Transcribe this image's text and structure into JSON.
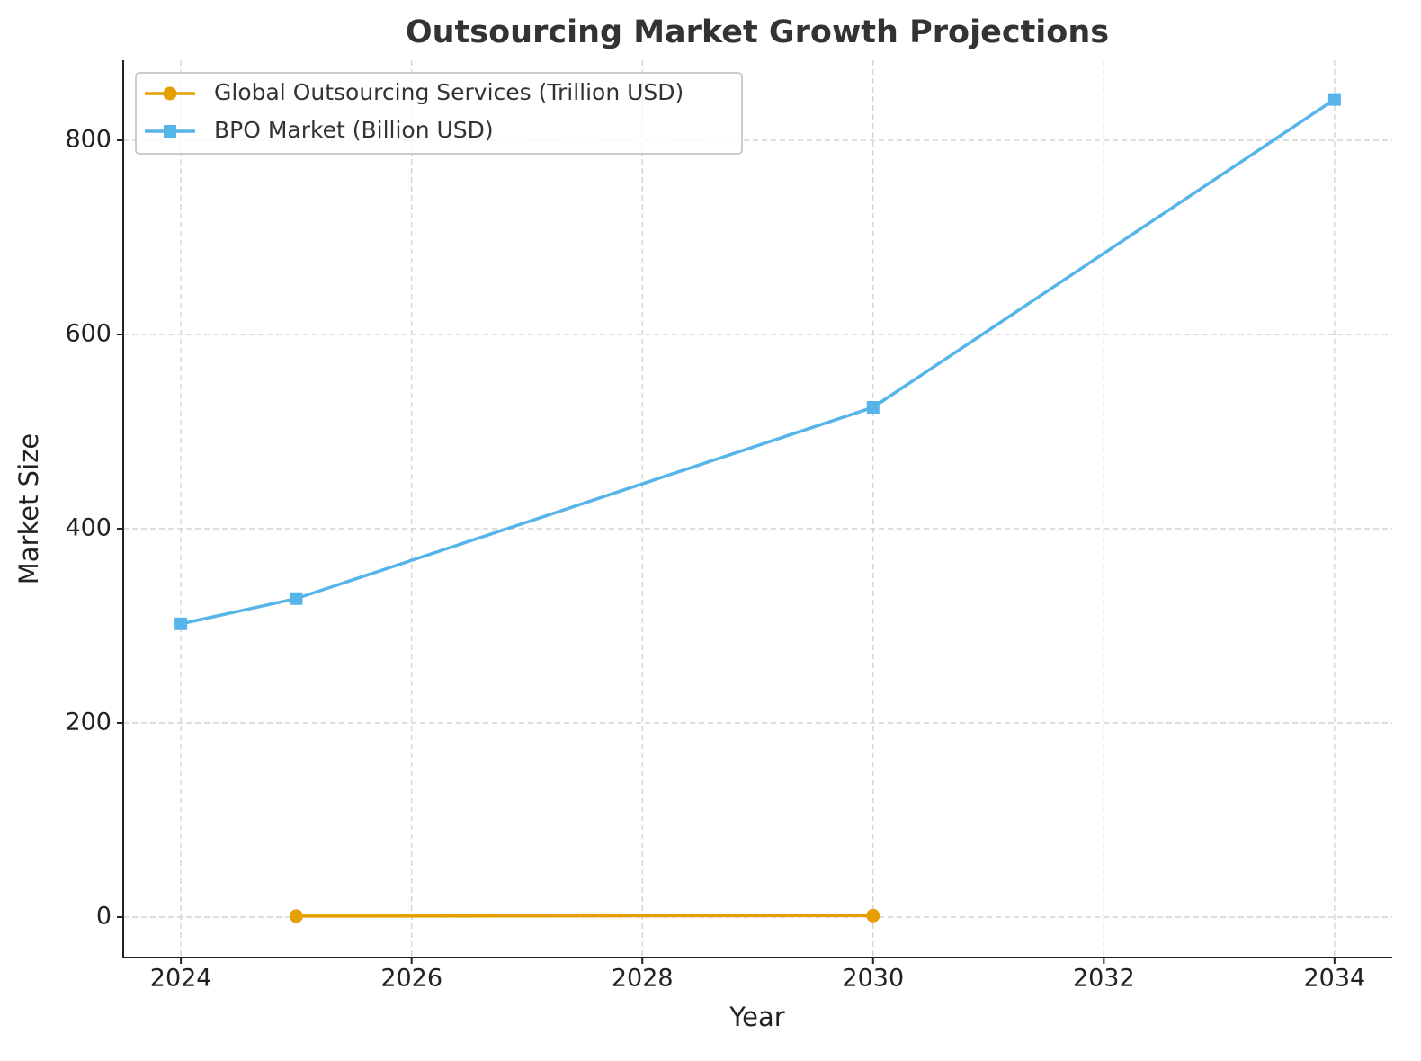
{
  "chart_data": {
    "type": "line",
    "title": "Outsourcing Market Growth Projections",
    "x_label": "Year",
    "y_label": "Market Size",
    "series": [
      {
        "name": "Global Outsourcing Services (Trillion USD)",
        "color": "#e69f00",
        "marker": "circle",
        "x": [
          2025,
          2030
        ],
        "values": [
          1.0,
          1.5
        ]
      },
      {
        "name": "BPO Market (Billion USD)",
        "color": "#56b4e9",
        "marker": "square",
        "x": [
          2024,
          2025,
          2030,
          2034
        ],
        "values": [
          302,
          328,
          525,
          842
        ]
      }
    ],
    "xlim": [
      2023.5,
      2034.5
    ],
    "xticks": [
      2024,
      2026,
      2028,
      2030,
      2032,
      2034
    ],
    "ylim": [
      -41.7,
      882.4
    ],
    "yticks": [
      0,
      200,
      400,
      600,
      800
    ],
    "grid": true,
    "legend": "upper left"
  }
}
